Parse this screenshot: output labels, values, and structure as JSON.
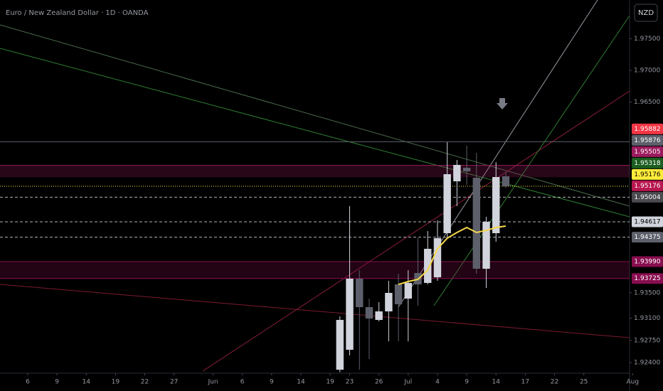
{
  "chart_data": {
    "type": "candlestick",
    "title": "Euro / New Zealand Dollar · 1D · OANDA",
    "currency": "NZD",
    "grid": false,
    "up_color": "#d1d4dc",
    "down_color": "#5d606b",
    "x": [
      -1,
      0,
      1,
      2,
      3,
      4,
      5,
      6,
      7,
      8,
      9,
      10,
      11,
      12,
      13,
      14,
      15,
      16
    ],
    "open": [
      1.9229,
      1.92603,
      1.93722,
      1.93274,
      1.93073,
      1.93207,
      1.93632,
      1.93409,
      1.93811,
      1.93655,
      1.93744,
      1.94438,
      1.95254,
      1.95467,
      1.9531,
      1.93878,
      1.94438,
      1.95333
    ],
    "high": [
      1.93129,
      1.94863,
      1.93856,
      1.93409,
      1.93353,
      1.93688,
      1.938,
      1.93856,
      1.94359,
      1.94471,
      1.94639,
      1.9587,
      1.9559,
      1.95814,
      1.95702,
      1.94695,
      1.95556,
      1.954
    ],
    "low": [
      1.9225,
      1.92514,
      1.9229,
      1.92458,
      1.93051,
      1.92737,
      1.92737,
      1.92737,
      1.93297,
      1.93632,
      1.93688,
      1.94359,
      1.94863,
      1.95198,
      1.938,
      1.93576,
      1.94304,
      1.9515
    ],
    "close": [
      1.93073,
      1.93722,
      1.93274,
      1.93095,
      1.93207,
      1.93498,
      1.93319,
      1.93655,
      1.93632,
      1.94192,
      1.94359,
      1.95366,
      1.95512,
      1.95411,
      1.93878,
      1.94617,
      1.95321,
      1.95176
    ],
    "moving_average": {
      "color": "#f7d94c",
      "x": [
        5,
        6,
        7,
        8,
        9,
        10,
        11,
        12,
        13,
        14,
        15,
        16
      ],
      "values": [
        1.93632,
        1.93677,
        1.93711,
        1.93856,
        1.94192,
        1.94359,
        1.94449,
        1.94527,
        1.94449,
        1.94482,
        1.94527,
        1.9455
      ]
    },
    "xlim": [
      -35.84,
      28.69
    ],
    "xticks": [
      {
        "value": -33,
        "label": "6"
      },
      {
        "value": -30,
        "label": "9"
      },
      {
        "value": -27,
        "label": "14"
      },
      {
        "value": -24,
        "label": "19"
      },
      {
        "value": -21,
        "label": "22"
      },
      {
        "value": -18,
        "label": "27"
      },
      {
        "value": -14,
        "label": "Jun"
      },
      {
        "value": -11,
        "label": "6"
      },
      {
        "value": -8,
        "label": "9"
      },
      {
        "value": -5,
        "label": "14"
      },
      {
        "value": -2,
        "label": "19"
      },
      {
        "value": 0,
        "label": "23"
      },
      {
        "value": 3,
        "label": "26"
      },
      {
        "value": 6,
        "label": "Jul"
      },
      {
        "value": 9,
        "label": "4"
      },
      {
        "value": 12,
        "label": "9"
      },
      {
        "value": 15,
        "label": "14"
      },
      {
        "value": 18,
        "label": "17"
      },
      {
        "value": 21,
        "label": "22"
      },
      {
        "value": 24,
        "label": "25"
      },
      {
        "value": 29,
        "label": "Aug"
      }
    ],
    "ylim": [
      1.92234,
      1.98107
    ],
    "yticks": [
      {
        "value": 1.975,
        "label": "1.97500"
      },
      {
        "value": 1.97,
        "label": "1.97000"
      },
      {
        "value": 1.965,
        "label": "1.96500"
      },
      {
        "value": 1.935,
        "label": "1.93500"
      },
      {
        "value": 1.931,
        "label": "1.93100"
      },
      {
        "value": 1.9275,
        "label": "1.92750"
      },
      {
        "value": 1.924,
        "label": "1.92400"
      }
    ],
    "price_labels": [
      {
        "value": 1.95882,
        "label": "1.95882",
        "color": "#f23645",
        "text_color": "#ffffff",
        "line": "none"
      },
      {
        "value": 1.95876,
        "label": "1.95876",
        "color": "#5d606b",
        "text_color": "#ffffff",
        "line": "solid"
      },
      {
        "value": 1.95505,
        "label": "1.95505",
        "color": "#9c1a5e",
        "text_color": "#ffffff",
        "line": "solid"
      },
      {
        "value": 1.95318,
        "label": "1.95318",
        "color": "#1b5e20",
        "text_color": "#ffffff",
        "line": "none"
      },
      {
        "value": 1.95176,
        "label": "1.95176",
        "color": "#ffeb3b",
        "text_color": "#000000",
        "line": "dotted"
      },
      {
        "value": 1.95176,
        "label": "1.95176",
        "color": "#b8174f",
        "text_color": "#ffffff",
        "line": "none"
      },
      {
        "value": 1.95004,
        "label": "1.95004",
        "color": "#4a4a4f",
        "text_color": "#ffffff",
        "line": "dashed"
      },
      {
        "value": 1.94617,
        "label": "1.94617",
        "color": "#d1d4dc",
        "text_color": "#000000",
        "line": "dashed"
      },
      {
        "value": 1.94375,
        "label": "1.94375",
        "color": "#5d606b",
        "text_color": "#ffffff",
        "line": "dashed"
      },
      {
        "value": 1.9399,
        "label": "1.93990",
        "color": "#880e4f",
        "text_color": "#ffffff",
        "line": "solid"
      },
      {
        "value": 1.93725,
        "label": "1.93725",
        "color": "#880e4f",
        "text_color": "#ffffff",
        "line": "solid"
      }
    ]
  }
}
